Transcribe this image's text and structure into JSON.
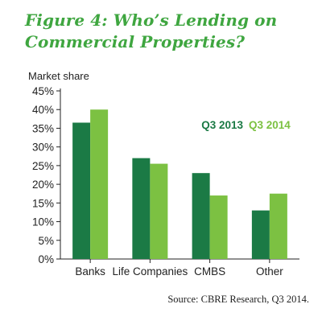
{
  "header": {
    "title_line1": "Figure 4: Who’s Lending on",
    "title_line2": "Commercial Properties?"
  },
  "footer": {
    "source": "Source: CBRE Research, Q3 2014."
  },
  "colors": {
    "title": "#3fa640",
    "q3_2013": "#1b7a45",
    "q3_2014": "#7cc142",
    "axis": "#222222"
  },
  "chart_data": {
    "type": "bar",
    "title": "Figure 4: Who’s Lending on Commercial Properties?",
    "ylabel": "Market share",
    "xlabel": "",
    "categories": [
      "Banks",
      "Life Companies",
      "CMBS",
      "Other"
    ],
    "series": [
      {
        "name": "Q3 2013",
        "values": [
          36.5,
          27.0,
          23.0,
          13.0
        ]
      },
      {
        "name": "Q3 2014",
        "values": [
          40.0,
          25.5,
          17.0,
          17.5
        ]
      }
    ],
    "ylim": [
      0,
      45
    ],
    "yticks": [
      0,
      5,
      10,
      15,
      20,
      25,
      30,
      35,
      40,
      45
    ],
    "ytick_labels": [
      "0%",
      "5%",
      "10%",
      "15%",
      "20%",
      "25%",
      "30%",
      "35%",
      "40%",
      "45%"
    ],
    "grid": false,
    "legend_position": "top-right"
  }
}
